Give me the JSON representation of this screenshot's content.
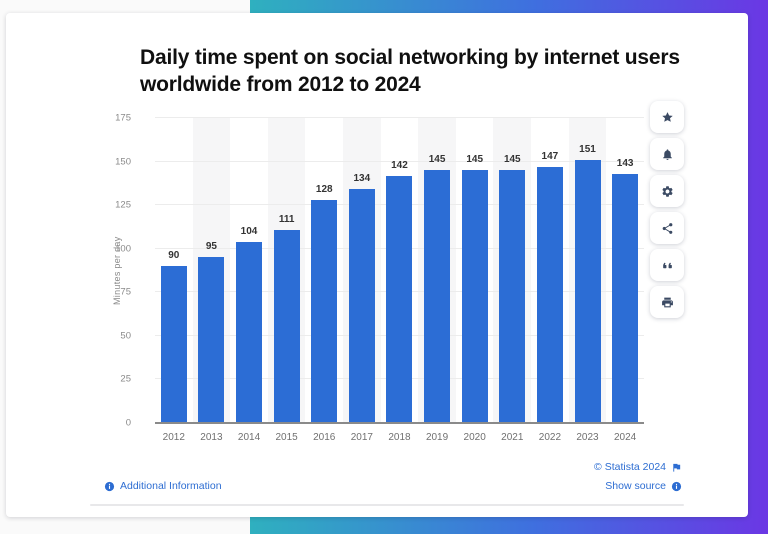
{
  "chart_data": {
    "type": "bar",
    "title": "Daily time spent on social networking by internet users worldwide from 2012 to 2024",
    "categories": [
      "2012",
      "2013",
      "2014",
      "2015",
      "2016",
      "2017",
      "2018",
      "2019",
      "2020",
      "2021",
      "2022",
      "2023",
      "2024"
    ],
    "values": [
      90,
      95,
      104,
      111,
      128,
      134,
      142,
      145,
      145,
      145,
      147,
      151,
      143
    ],
    "xlabel": "",
    "ylabel": "Minutes per day",
    "ylim": [
      0,
      175
    ],
    "yticks": [
      0,
      25,
      50,
      75,
      100,
      125,
      150,
      175
    ],
    "grid": true,
    "legend": false,
    "bar_color": "#2c6dd5"
  },
  "toolbar": {
    "buttons": [
      {
        "icon": "star-icon"
      },
      {
        "icon": "bell-icon"
      },
      {
        "icon": "gear-icon"
      },
      {
        "icon": "share-icon"
      },
      {
        "icon": "quote-icon"
      },
      {
        "icon": "printer-icon"
      }
    ]
  },
  "footer": {
    "additional_info_label": "Additional Information",
    "copyright": "© Statista 2024",
    "show_source_label": "Show source"
  },
  "colors": {
    "bar": "#2c6dd5",
    "link": "#2d6dd2",
    "stripe": "#f6f6f7",
    "gradient_teal": "#2fb0bf",
    "gradient_purple": "#6b37e4"
  }
}
